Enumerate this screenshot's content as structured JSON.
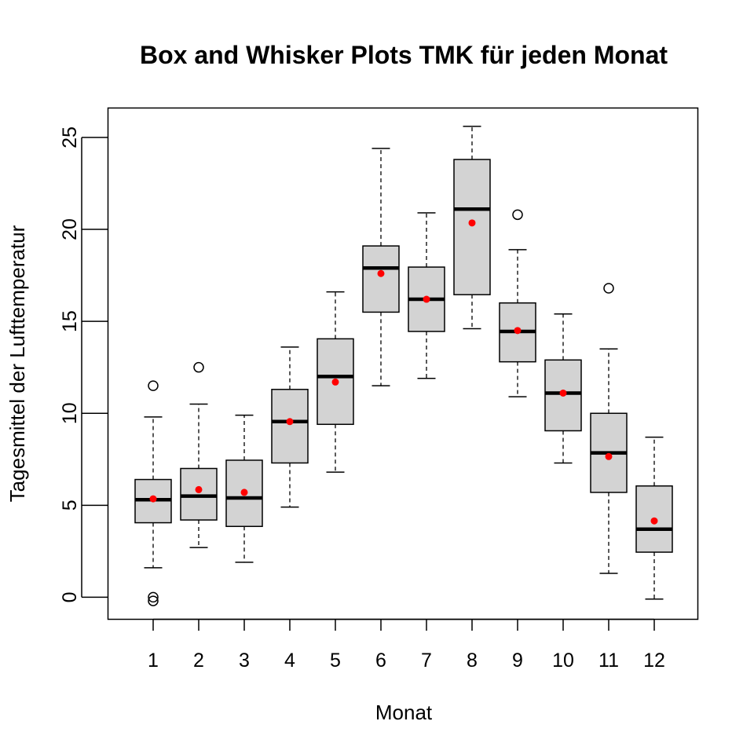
{
  "chart_data": {
    "type": "box",
    "title": "Box and Whisker Plots TMK für jeden Monat",
    "xlabel": "Monat",
    "ylabel": "Tagesmittel der Lufttemperatur",
    "ylim": [
      -1.2,
      26.6
    ],
    "y_ticks": [
      "0",
      "5",
      "10",
      "15",
      "20",
      "25"
    ],
    "y_tick_values": [
      0,
      5,
      10,
      15,
      20,
      25
    ],
    "categories": [
      "1",
      "2",
      "3",
      "4",
      "5",
      "6",
      "7",
      "8",
      "9",
      "10",
      "11",
      "12"
    ],
    "boxes": [
      {
        "min": 1.6,
        "q1": 4.05,
        "median": 5.3,
        "q3": 6.4,
        "max": 9.8,
        "mean": 5.35,
        "outliers": [
          11.5,
          0.0,
          -0.2
        ]
      },
      {
        "min": 2.7,
        "q1": 4.2,
        "median": 5.5,
        "q3": 7.0,
        "max": 10.5,
        "mean": 5.85,
        "outliers": [
          12.5
        ]
      },
      {
        "min": 1.9,
        "q1": 3.85,
        "median": 5.4,
        "q3": 7.45,
        "max": 9.9,
        "mean": 5.7,
        "outliers": []
      },
      {
        "min": 4.9,
        "q1": 7.3,
        "median": 9.55,
        "q3": 11.3,
        "max": 13.6,
        "mean": 9.55,
        "outliers": []
      },
      {
        "min": 6.8,
        "q1": 9.4,
        "median": 12.0,
        "q3": 14.05,
        "max": 16.6,
        "mean": 11.7,
        "outliers": []
      },
      {
        "min": 11.5,
        "q1": 15.5,
        "median": 17.9,
        "q3": 19.1,
        "max": 24.4,
        "mean": 17.6,
        "outliers": []
      },
      {
        "min": 11.9,
        "q1": 14.45,
        "median": 16.2,
        "q3": 17.95,
        "max": 20.9,
        "mean": 16.2,
        "outliers": []
      },
      {
        "min": 14.6,
        "q1": 16.45,
        "median": 21.1,
        "q3": 23.8,
        "max": 25.6,
        "mean": 20.35,
        "outliers": []
      },
      {
        "min": 10.9,
        "q1": 12.8,
        "median": 14.45,
        "q3": 16.0,
        "max": 18.9,
        "mean": 14.5,
        "outliers": [
          20.8
        ]
      },
      {
        "min": 7.3,
        "q1": 9.05,
        "median": 11.1,
        "q3": 12.9,
        "max": 15.4,
        "mean": 11.1,
        "outliers": []
      },
      {
        "min": 1.3,
        "q1": 5.7,
        "median": 7.85,
        "q3": 10.0,
        "max": 13.5,
        "mean": 7.65,
        "outliers": [
          16.8
        ]
      },
      {
        "min": -0.1,
        "q1": 2.45,
        "median": 3.7,
        "q3": 6.05,
        "max": 8.7,
        "mean": 4.15,
        "outliers": []
      }
    ],
    "colors": {
      "box_fill": "#d3d3d3",
      "stroke": "#000000",
      "mean_point": "#ff0000"
    },
    "grid": false,
    "legend": "none"
  }
}
